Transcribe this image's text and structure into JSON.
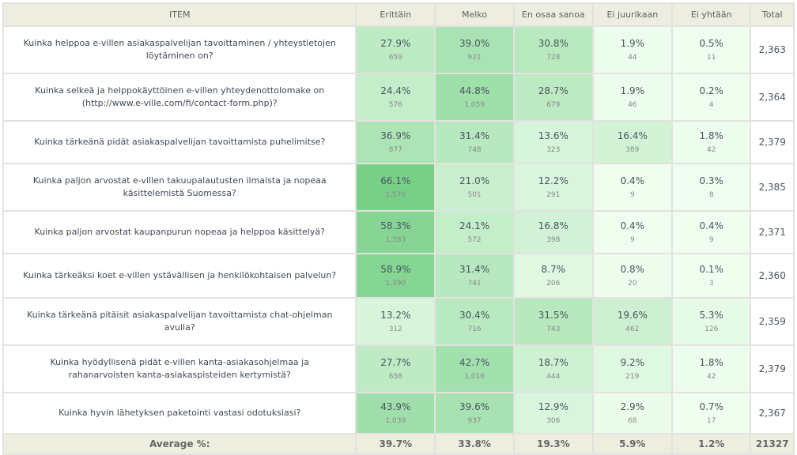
{
  "headers": [
    "ITEM",
    "Erittäin",
    "Melko",
    "En osaa sanoa",
    "Ei juurikaan",
    "Ei yhtään",
    "Total"
  ],
  "rows": [
    {
      "item": "Kuinka helppoa e-villen asiakaspalvelijan tavoittaminen / yhteystietojen löytäminen on?",
      "pct": [
        "27.9%",
        "39.0%",
        "30.8%",
        "1.9%",
        "0.5%"
      ],
      "cnt": [
        "659",
        "921",
        "728",
        "44",
        "11"
      ],
      "total": "2,363"
    },
    {
      "item": "Kuinka selkeä ja helppokäyttöinen e-villen yhteydenottolomake on (http://www.e-ville.com/fi/contact-form.php)?",
      "pct": [
        "24.4%",
        "44.8%",
        "28.7%",
        "1.9%",
        "0.2%"
      ],
      "cnt": [
        "576",
        "1,059",
        "679",
        "46",
        "4"
      ],
      "total": "2,364"
    },
    {
      "item": "Kuinka tärkeänä pidät asiakaspalvelijan tavoittamista puhelimitse?",
      "pct": [
        "36.9%",
        "31.4%",
        "13.6%",
        "16.4%",
        "1.8%"
      ],
      "cnt": [
        "877",
        "748",
        "323",
        "389",
        "42"
      ],
      "total": "2,379"
    },
    {
      "item": "Kuinka paljon arvostat e-villen takuupalautusten ilmaista ja nopeaa käsittelemistä Suomessa?",
      "pct": [
        "66.1%",
        "21.0%",
        "12.2%",
        "0.4%",
        "0.3%"
      ],
      "cnt": [
        "1,576",
        "501",
        "291",
        "9",
        "8"
      ],
      "total": "2,385"
    },
    {
      "item": "Kuinka paljon arvostat kaupanpurun nopeaa ja helppoa käsittelyä?",
      "pct": [
        "58.3%",
        "24.1%",
        "16.8%",
        "0.4%",
        "0.4%"
      ],
      "cnt": [
        "1,383",
        "572",
        "398",
        "9",
        "9"
      ],
      "total": "2,371"
    },
    {
      "item": "Kuinka tärkeäksi koet e-villen ystävällisen ja henkilökohtaisen palvelun?",
      "pct": [
        "58.9%",
        "31.4%",
        "8.7%",
        "0.8%",
        "0.1%"
      ],
      "cnt": [
        "1,390",
        "741",
        "206",
        "20",
        "3"
      ],
      "total": "2,360"
    },
    {
      "item": "Kuinka tärkeänä pitäisit asiakaspalvelijan tavoittamista chat-ohjelman avulla?",
      "pct": [
        "13.2%",
        "30.4%",
        "31.5%",
        "19.6%",
        "5.3%"
      ],
      "cnt": [
        "312",
        "716",
        "743",
        "462",
        "126"
      ],
      "total": "2,359"
    },
    {
      "item": "Kuinka hyödyllisenä pidät e-villen kanta-asiakasohjelmaa ja rahanarvoisten kanta-asiakaspisteiden kertymistä?",
      "pct": [
        "27.7%",
        "42.7%",
        "18.7%",
        "9.2%",
        "1.8%"
      ],
      "cnt": [
        "658",
        "1,016",
        "444",
        "219",
        "42"
      ],
      "total": "2,379"
    },
    {
      "item": "Kuinka hyvin lähetyksen paketointi vastasi odotuksiasi?",
      "pct": [
        "43.9%",
        "39.6%",
        "12.9%",
        "2.9%",
        "0.7%"
      ],
      "cnt": [
        "1,039",
        "937",
        "306",
        "68",
        "17"
      ],
      "total": "2,367"
    }
  ],
  "footer": {
    "label": "Average %:",
    "pct": [
      "39.7%",
      "33.8%",
      "19.3%",
      "5.9%",
      "1.2%"
    ],
    "total": "21327"
  },
  "colors": {
    "low": "#f0fef0",
    "high": "#78d088"
  }
}
